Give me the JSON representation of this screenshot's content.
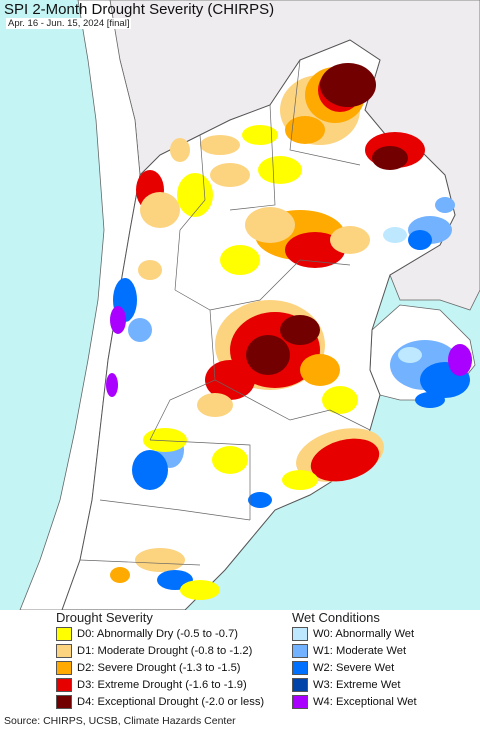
{
  "title": "SPI 2-Month Drought Severity (CHIRPS)",
  "subtitle": "Apr. 16 - Jun. 15, 2024 [final]",
  "colors": {
    "ocean": "#c4f4f4",
    "land_outside": "#efecef",
    "no_anomaly": "#ffffff",
    "border": "#555555"
  },
  "legend": {
    "drought_heading": "Drought Severity",
    "wet_heading": "Wet Conditions",
    "drought": [
      {
        "label": "D0: Abnormally Dry (-0.5 to -0.7)",
        "color": "#ffff00"
      },
      {
        "label": "D1: Moderate Drought (-0.8 to -1.2)",
        "color": "#fcd37f"
      },
      {
        "label": "D2: Severe Drought (-1.3 to -1.5)",
        "color": "#ffaa00"
      },
      {
        "label": "D3: Extreme Drought (-1.6 to -1.9)",
        "color": "#e60000"
      },
      {
        "label": "D4: Exceptional Drought (-2.0 or less)",
        "color": "#730000"
      }
    ],
    "wet": [
      {
        "label": "W0: Abnormally Wet",
        "color": "#bee8ff"
      },
      {
        "label": "W1: Moderate Wet",
        "color": "#73b2ff"
      },
      {
        "label": "W2: Severe Wet",
        "color": "#0070ff"
      },
      {
        "label": "W3: Extreme Wet",
        "color": "#0044aa"
      },
      {
        "label": "W4: Exceptional Wet",
        "color": "#aa00ff"
      }
    ]
  },
  "source": "Source: CHIRPS, UCSB, Climate Hazards Center"
}
